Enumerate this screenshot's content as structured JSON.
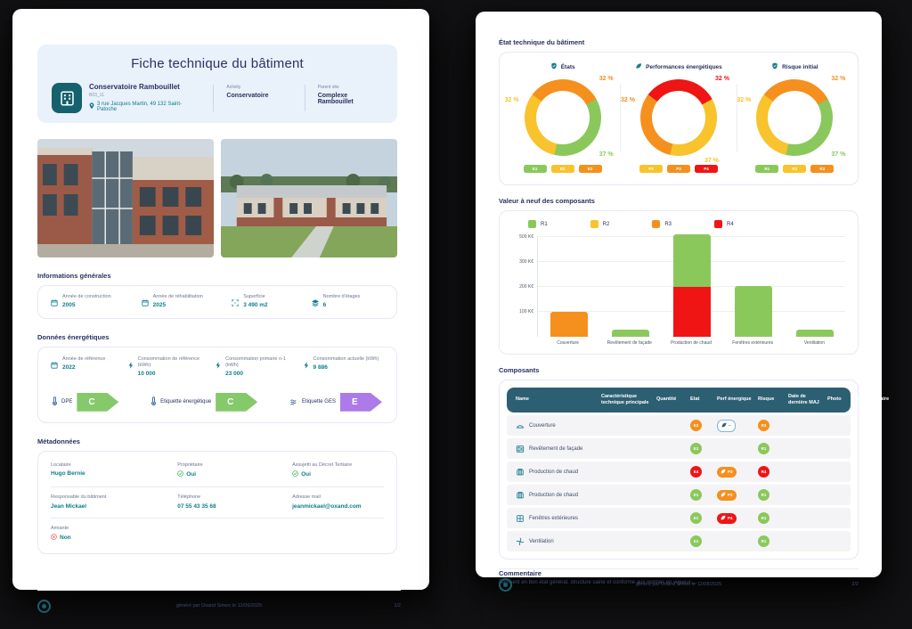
{
  "page1": {
    "title": "Fiche technique du bâtiment",
    "building": {
      "name": "Conservatoire Rambouillet",
      "code": "B03_11",
      "address": "3 rue Jacques Martin, 49 132 Saint-Patoche"
    },
    "activity": {
      "label": "Activity",
      "value": "Conservatoire"
    },
    "parent_site": {
      "label": "Parent site",
      "value": "Complexe Rambouillet"
    },
    "info": {
      "title": "Informations générales",
      "items": [
        {
          "label": "Année de construction",
          "value": "2005",
          "icon": "calendar-icon"
        },
        {
          "label": "Année de réhabilitation",
          "value": "2025",
          "icon": "calendar-icon"
        },
        {
          "label": "Superficie",
          "value": "3 490 m2",
          "icon": "expand-icon"
        },
        {
          "label": "Nombre d'étages",
          "value": "6",
          "icon": "floors-icon"
        }
      ]
    },
    "energy": {
      "title": "Données énergétiques",
      "items": [
        {
          "label": "Année de référence",
          "value": "2022",
          "icon": "calendar-icon"
        },
        {
          "label": "Consommation de référence (kWh)",
          "value": "10 000",
          "icon": "bolt-icon"
        },
        {
          "label": "Consommation primaire n-1 (kWh)",
          "value": "23 000",
          "icon": "bolt-icon"
        },
        {
          "label": "Consommation actuelle (kWh)",
          "value": "9 886",
          "icon": "bolt-icon"
        }
      ],
      "grades": [
        {
          "label": "DPE",
          "grade": "C",
          "color": "#85C96B"
        },
        {
          "label": "Etiquette énergétique",
          "grade": "C",
          "color": "#85C96B"
        },
        {
          "label": "Etiquette GES",
          "grade": "E",
          "color": "#AD7BE9"
        }
      ]
    },
    "meta": {
      "title": "Métadonnées",
      "items": [
        {
          "label": "Locataire",
          "value": "Hugo Bernie",
          "status": "none"
        },
        {
          "label": "Propriétaire",
          "value": "Oui",
          "status": "check"
        },
        {
          "label": "Assujetti au Décret Tertiaire",
          "value": "Oui",
          "status": "check"
        },
        {
          "label": "Responsable du bâtiment",
          "value": "Jean Mickael",
          "status": "none"
        },
        {
          "label": "Téléphone",
          "value": "07 55 43 35 68",
          "status": "none"
        },
        {
          "label": "Adresse mail",
          "value": "jeanmickael@oxand.com",
          "status": "none"
        },
        {
          "label": "Amiante",
          "value": "Non",
          "status": "cross"
        }
      ]
    },
    "footer": {
      "generated": "généré par Oxand Simeo le 12/06/2025",
      "page": "1/2"
    }
  },
  "page2": {
    "sections": {
      "etat": "État technique du bâtiment",
      "valeur": "Valeur à neuf des composants",
      "composants": "Composants"
    },
    "table": {
      "headers": [
        "Name",
        "Caractéristique technique principale",
        "Quantité",
        "Etat",
        "Perf énergique",
        "Risque",
        "Date de dernière MAJ",
        "Photo",
        "Commentaire"
      ],
      "rows": [
        {
          "icon": "roof",
          "name": "Couverture",
          "caracteristique": "",
          "quantite": "",
          "etat": {
            "text": "E3",
            "color": "#F5901E"
          },
          "perf": {
            "text": "--",
            "style": "outline"
          },
          "risque": {
            "text": "R3",
            "color": "#F5901E"
          },
          "date_maj": "",
          "photo": "",
          "commentaire": ""
        },
        {
          "icon": "facade",
          "name": "Revêtement de façade",
          "caracteristique": "",
          "quantite": "",
          "etat": {
            "text": "E1",
            "color": "#8BC85C"
          },
          "perf": null,
          "risque": {
            "text": "R1",
            "color": "#8BC85C"
          },
          "date_maj": "",
          "photo": "",
          "commentaire": ""
        },
        {
          "icon": "heating",
          "name": "Production de chaud",
          "caracteristique": "",
          "quantite": "",
          "etat": {
            "text": "E4",
            "color": "#EF1515"
          },
          "perf": {
            "text": "P3",
            "color": "#F5901E"
          },
          "risque": {
            "text": "R4",
            "color": "#EF1515"
          },
          "date_maj": "",
          "photo": "",
          "commentaire": ""
        },
        {
          "icon": "heating",
          "name": "Production de chaud",
          "caracteristique": "",
          "quantite": "",
          "etat": {
            "text": "E1",
            "color": "#8BC85C"
          },
          "perf": {
            "text": "P3",
            "color": "#F5901E"
          },
          "risque": {
            "text": "R1",
            "color": "#8BC85C"
          },
          "date_maj": "",
          "photo": "",
          "commentaire": ""
        },
        {
          "icon": "window",
          "name": "Fenêtres extérieures",
          "caracteristique": "",
          "quantite": "",
          "etat": {
            "text": "E1",
            "color": "#8BC85C"
          },
          "perf": {
            "text": "P4",
            "color": "#EF1515"
          },
          "risque": {
            "text": "R1",
            "color": "#8BC85C"
          },
          "date_maj": "",
          "photo": "",
          "commentaire": ""
        },
        {
          "icon": "vent",
          "name": "Ventilation",
          "caracteristique": "",
          "quantite": "",
          "etat": {
            "text": "E1",
            "color": "#8BC85C"
          },
          "perf": null,
          "risque": {
            "text": "R1",
            "color": "#8BC85C"
          },
          "date_maj": "",
          "photo": "",
          "commentaire": ""
        }
      ]
    },
    "commentaire": {
      "title": "Commentaire",
      "text": "Bâtiment en bon état général, structure saine et conforme aux normes en vigueur...."
    },
    "footer": {
      "generated": "généré par Oxand Simeo le 12/08/2025",
      "page": "2/2"
    }
  },
  "chart_data": [
    {
      "type": "pie",
      "title": "États",
      "icon": "shield-icon",
      "start_angle": 307,
      "slices": [
        {
          "label": "E3",
          "value": 32,
          "color": "#F5901E",
          "label_pos": "top-right"
        },
        {
          "label": "E1",
          "value": 37,
          "color": "#8BC85C",
          "label_pos": "bottom-right"
        },
        {
          "label": "E2",
          "value": 32,
          "color": "#F8C32C",
          "label_pos": "left"
        }
      ],
      "legend": [
        {
          "label": "E1",
          "color": "#8BC85C"
        },
        {
          "label": "E2",
          "color": "#F8C32C"
        },
        {
          "label": "E3",
          "color": "#F5901E"
        }
      ]
    },
    {
      "type": "pie",
      "title": "Performances énergétiques",
      "icon": "leaf-icon",
      "start_angle": 307,
      "slices": [
        {
          "label": "P4",
          "value": 32,
          "color": "#EF1515",
          "label_pos": "top-right"
        },
        {
          "label": "P2",
          "value": 37,
          "color": "#F8C32C",
          "label_pos": "bottom"
        },
        {
          "label": "P3",
          "value": 32,
          "color": "#F5901E",
          "label_pos": "left"
        }
      ],
      "legend": [
        {
          "label": "P2",
          "color": "#F8C32C"
        },
        {
          "label": "P3",
          "color": "#F5901E"
        },
        {
          "label": "P4",
          "color": "#EF1515"
        }
      ]
    },
    {
      "type": "pie",
      "title": "Risque initial",
      "icon": "shield-icon",
      "start_angle": 307,
      "slices": [
        {
          "label": "R3",
          "value": 32,
          "color": "#F5901E",
          "label_pos": "top-right"
        },
        {
          "label": "R1",
          "value": 37,
          "color": "#8BC85C",
          "label_pos": "bottom-right"
        },
        {
          "label": "R2",
          "value": 32,
          "color": "#F8C32C",
          "label_pos": "left"
        }
      ],
      "legend": [
        {
          "label": "R1",
          "color": "#8BC85C"
        },
        {
          "label": "R2",
          "color": "#F8C32C"
        },
        {
          "label": "R3",
          "color": "#F5901E"
        }
      ]
    },
    {
      "type": "bar",
      "stacked": true,
      "title": "Valeur à neuf des composants",
      "xlabel": "",
      "ylabel": "K€",
      "y_tick_labels": [
        "100 K€",
        "200 K€",
        "300 K€",
        "500 K€"
      ],
      "y_tick_values": [
        100,
        200,
        300,
        500
      ],
      "categories": [
        "Couverture",
        "Revêtement de façade",
        "Production de chaud",
        "Fenêtres extérieures",
        "Ventilation"
      ],
      "series": [
        {
          "name": "R1",
          "color": "#8BC85C",
          "values": [
            0,
            30,
            320,
            205,
            30
          ]
        },
        {
          "name": "R2",
          "color": "#F8C32C",
          "values": [
            0,
            0,
            0,
            0,
            0
          ]
        },
        {
          "name": "R3",
          "color": "#F5901E",
          "values": [
            100,
            0,
            0,
            0,
            0
          ]
        },
        {
          "name": "R4",
          "color": "#EF1515",
          "values": [
            0,
            0,
            200,
            0,
            0
          ]
        }
      ]
    }
  ]
}
